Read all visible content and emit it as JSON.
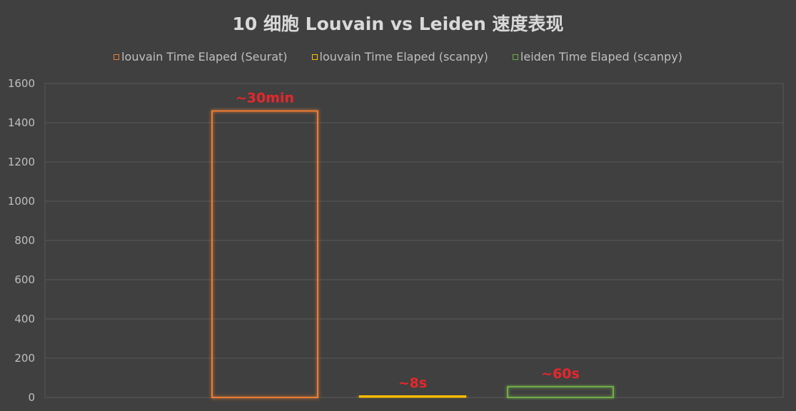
{
  "chart_data": {
    "type": "bar",
    "title": "10 细胞 Louvain vs Leiden 速度表现",
    "xlabel": "",
    "ylabel": "",
    "ylim": [
      0,
      1600
    ],
    "yticks": [
      0,
      200,
      400,
      600,
      800,
      1000,
      1200,
      1400,
      1600
    ],
    "grid": true,
    "legend_position": "top",
    "series": [
      {
        "name": "louvain Time Elaped (Seurat)",
        "value": 1460,
        "color": "#ed7d31",
        "data_label": "~30min"
      },
      {
        "name": "louvain Time Elaped (scanpy)",
        "value": 8,
        "color": "#ffc000",
        "data_label": "~8s"
      },
      {
        "name": "leiden Time Elaped (scanpy)",
        "value": 55,
        "color": "#70ad47",
        "data_label": "~60s"
      }
    ]
  }
}
